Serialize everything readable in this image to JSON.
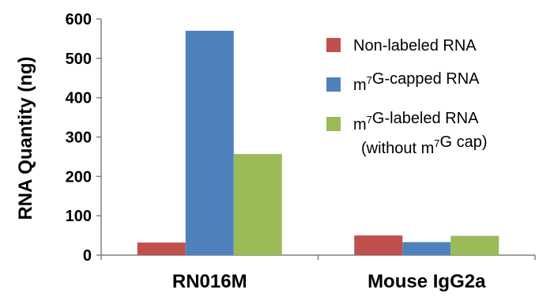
{
  "chart_data": {
    "type": "bar",
    "title": "",
    "xlabel": "",
    "ylabel": "RNA Quantity (ng)",
    "ylim": [
      0,
      600
    ],
    "yticks": [
      0,
      100,
      200,
      300,
      400,
      500,
      600
    ],
    "grid": false,
    "legend_position": "top-right",
    "categories": [
      "RN016M",
      "Mouse IgG2a"
    ],
    "series": [
      {
        "name": "Non-labeled RNA",
        "color": "#C0504D",
        "values": [
          32,
          50
        ]
      },
      {
        "name": "m7G-capped RNA",
        "color": "#4F81BD",
        "values": [
          570,
          33
        ]
      },
      {
        "name": "m7G-labeled RNA (without m7G cap)",
        "color": "#9BBB59",
        "values": [
          257,
          49
        ]
      }
    ],
    "legend_text": [
      {
        "parts": [
          {
            "t": "Non-labeled RNA"
          }
        ]
      },
      {
        "parts": [
          {
            "t": "m"
          },
          {
            "t": "7",
            "sup": true
          },
          {
            "t": "G-capped RNA"
          }
        ]
      },
      {
        "parts": [
          {
            "t": "m"
          },
          {
            "t": "7",
            "sup": true
          },
          {
            "t": "G-labeled RNA"
          }
        ],
        "line2": [
          {
            "t": "(without m"
          },
          {
            "t": "7",
            "sup": true
          },
          {
            "t": "G cap)"
          }
        ]
      }
    ]
  }
}
